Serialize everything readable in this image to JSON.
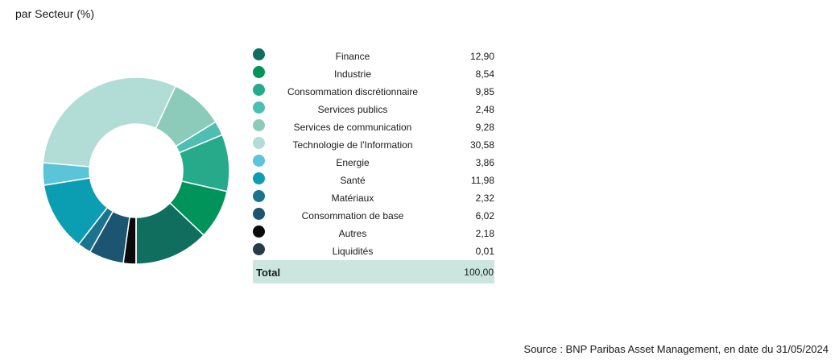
{
  "header": {
    "title": "par Secteur (%)"
  },
  "chart_data": {
    "type": "pie",
    "donut": true,
    "series": [
      {
        "label": "Finance",
        "value": 12.9,
        "display": "12,90",
        "color": "#0f6e5e"
      },
      {
        "label": "Industrie",
        "value": 8.54,
        "display": "8,54",
        "color": "#00935a"
      },
      {
        "label": "Consommation discrétionnaire",
        "value": 9.85,
        "display": "9,85",
        "color": "#27aa8a"
      },
      {
        "label": "Services publics",
        "value": 2.48,
        "display": "2,48",
        "color": "#4ebdb2"
      },
      {
        "label": "Services de communication",
        "value": 9.28,
        "display": "9,28",
        "color": "#8ccbb9"
      },
      {
        "label": "Technologie de l'Information",
        "value": 30.58,
        "display": "30,58",
        "color": "#b2dcd6"
      },
      {
        "label": "Energie",
        "value": 3.86,
        "display": "3,86",
        "color": "#5bc4d8"
      },
      {
        "label": "Santé",
        "value": 11.98,
        "display": "11,98",
        "color": "#0b9db2"
      },
      {
        "label": "Matériaux",
        "value": 2.32,
        "display": "2,32",
        "color": "#1b7390"
      },
      {
        "label": "Consommation de base",
        "value": 6.02,
        "display": "6,02",
        "color": "#1b5571"
      },
      {
        "label": "Autres",
        "value": 2.18,
        "display": "2,18",
        "color": "#0a0a0a"
      },
      {
        "label": "Liquidités",
        "value": 0.01,
        "display": "0,01",
        "color": "#253b45"
      }
    ],
    "total": {
      "label": "Total",
      "value": "100,00"
    },
    "legend_position": "right"
  },
  "footer": {
    "source": "Source : BNP Paribas Asset Management, en date du 31/05/2024"
  }
}
